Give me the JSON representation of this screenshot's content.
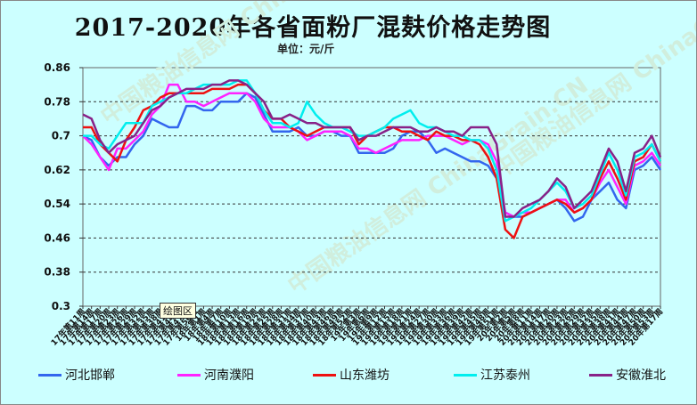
{
  "chart_data": {
    "type": "line",
    "title": "2017-2020年各省面粉厂混麸价格走势图",
    "subtitle": "单位：元/斤",
    "ylim": [
      0.3,
      0.86
    ],
    "yticks": [
      "0.86",
      "0.78",
      "0.7",
      "0.62",
      "0.54",
      "0.46",
      "0.38",
      "0.3"
    ],
    "ytick_values": [
      0.86,
      0.78,
      0.7,
      0.62,
      0.54,
      0.46,
      0.38,
      0.3
    ],
    "grid": true,
    "legend_position": "bottom",
    "plot_area_label": "绘图区",
    "watermark": "中国粮油信息网 ChinaGrain.CN",
    "x_count": 68,
    "xtick_labels": [
      "17年第11周",
      "17年第14周",
      "17年第17周",
      "17年第20周",
      "17年第23周",
      "17年第26周",
      "17年第29周",
      "17年第32周",
      "17年第35周",
      "17年第38周",
      "17年第41周",
      "17年第44周",
      "17年第47周",
      "17年第50周",
      "18年第1周",
      "18年第4周",
      "18年第7周",
      "18年第10周",
      "18年第13周",
      "18年第16周",
      "18年第19周",
      "18年第22周",
      "18年第25周",
      "18年第28周",
      "18年第31周",
      "18年第34周",
      "18年第37周",
      "18年第40周",
      "18年第43周",
      "18年第46周",
      "18年第49周",
      "18年第52周",
      "19年第3周",
      "19年第6周",
      "19年第9周",
      "19年第12周",
      "19年第15周",
      "19年第18周",
      "19年第21周",
      "19年第24周",
      "19年第27周",
      "19年第30周",
      "19年第33周",
      "19年第36周",
      "19年第39周",
      "19年第42周",
      "19年第45周",
      "19年第48周",
      "19年第51周",
      "20年第2周",
      "20年第5周",
      "20年第8周",
      "20年第11周",
      "20年第14周",
      "20年第17周",
      "20年第20周",
      "20年第23周",
      "20年第26周",
      "20年第29周",
      "20年第32周",
      "20年第35周",
      "20年第38周",
      "20年第41周",
      "20年第44周",
      "20年第47周",
      "20年第50周",
      "20年第53周",
      "20年第17周"
    ],
    "series": [
      {
        "name": "河北邯郸",
        "color": "#3366ee",
        "values": [
          0.7,
          0.69,
          0.65,
          0.63,
          0.65,
          0.65,
          0.68,
          0.7,
          0.74,
          0.73,
          0.72,
          0.72,
          0.77,
          0.77,
          0.76,
          0.76,
          0.78,
          0.78,
          0.78,
          0.8,
          0.79,
          0.75,
          0.71,
          0.71,
          0.71,
          0.72,
          0.7,
          0.7,
          0.71,
          0.71,
          0.7,
          0.7,
          0.66,
          0.66,
          0.66,
          0.66,
          0.67,
          0.7,
          0.71,
          0.71,
          0.69,
          0.66,
          0.67,
          0.66,
          0.65,
          0.64,
          0.64,
          0.63,
          0.6,
          0.52,
          0.51,
          0.51,
          0.52,
          0.53,
          0.54,
          0.55,
          0.53,
          0.5,
          0.51,
          0.55,
          0.57,
          0.59,
          0.55,
          0.53,
          0.62,
          0.63,
          0.65,
          0.62
        ]
      },
      {
        "name": "河南濮阳",
        "color": "#ff22ff",
        "values": [
          0.7,
          0.68,
          0.65,
          0.62,
          0.67,
          0.67,
          0.69,
          0.71,
          0.75,
          0.77,
          0.82,
          0.82,
          0.78,
          0.78,
          0.77,
          0.78,
          0.79,
          0.8,
          0.8,
          0.8,
          0.78,
          0.74,
          0.72,
          0.72,
          0.72,
          0.71,
          0.69,
          0.7,
          0.71,
          0.71,
          0.71,
          0.7,
          0.67,
          0.67,
          0.66,
          0.67,
          0.68,
          0.69,
          0.69,
          0.69,
          0.7,
          0.7,
          0.7,
          0.69,
          0.68,
          0.69,
          0.69,
          0.68,
          0.64,
          0.52,
          0.51,
          0.52,
          0.52,
          0.53,
          0.54,
          0.55,
          0.55,
          0.52,
          0.53,
          0.55,
          0.59,
          0.62,
          0.58,
          0.54,
          0.63,
          0.64,
          0.66,
          0.63
        ]
      },
      {
        "name": "山东潍坊",
        "color": "#ee1111",
        "values": [
          0.72,
          0.72,
          0.68,
          0.66,
          0.64,
          0.69,
          0.72,
          0.76,
          0.77,
          0.79,
          0.8,
          0.8,
          0.8,
          0.8,
          0.8,
          0.81,
          0.81,
          0.81,
          0.82,
          0.82,
          0.8,
          0.76,
          0.74,
          0.74,
          0.72,
          0.71,
          0.7,
          0.71,
          0.72,
          0.72,
          0.72,
          0.72,
          0.68,
          0.7,
          0.71,
          0.72,
          0.72,
          0.71,
          0.71,
          0.7,
          0.69,
          0.71,
          0.7,
          0.7,
          0.69,
          0.69,
          0.68,
          0.65,
          0.6,
          0.48,
          0.46,
          0.51,
          0.52,
          0.53,
          0.54,
          0.55,
          0.54,
          0.52,
          0.53,
          0.55,
          0.6,
          0.64,
          0.6,
          0.55,
          0.64,
          0.65,
          0.68,
          0.64
        ]
      },
      {
        "name": "江苏泰州",
        "color": "#00eeee",
        "values": [
          0.7,
          0.7,
          0.68,
          0.67,
          0.7,
          0.73,
          0.73,
          0.73,
          0.77,
          0.78,
          0.79,
          0.8,
          0.8,
          0.81,
          0.82,
          0.82,
          0.82,
          0.82,
          0.83,
          0.83,
          0.8,
          0.76,
          0.73,
          0.73,
          0.72,
          0.73,
          0.78,
          0.75,
          0.73,
          0.72,
          0.72,
          0.71,
          0.7,
          0.7,
          0.71,
          0.72,
          0.74,
          0.75,
          0.76,
          0.73,
          0.72,
          0.72,
          0.71,
          0.7,
          0.7,
          0.69,
          0.69,
          0.67,
          0.62,
          0.5,
          0.51,
          0.52,
          0.53,
          0.55,
          0.57,
          0.59,
          0.57,
          0.53,
          0.54,
          0.56,
          0.61,
          0.66,
          0.62,
          0.56,
          0.65,
          0.66,
          0.68,
          0.64
        ]
      },
      {
        "name": "安徽淮北",
        "color": "#882288",
        "values": [
          0.75,
          0.74,
          0.69,
          0.66,
          0.68,
          0.69,
          0.7,
          0.73,
          0.76,
          0.77,
          0.79,
          0.8,
          0.81,
          0.81,
          0.81,
          0.82,
          0.82,
          0.83,
          0.83,
          0.82,
          0.8,
          0.78,
          0.74,
          0.74,
          0.75,
          0.74,
          0.73,
          0.73,
          0.72,
          0.72,
          0.72,
          0.72,
          0.69,
          0.7,
          0.7,
          0.71,
          0.72,
          0.72,
          0.72,
          0.71,
          0.71,
          0.72,
          0.71,
          0.71,
          0.7,
          0.72,
          0.72,
          0.72,
          0.68,
          0.51,
          0.51,
          0.53,
          0.54,
          0.55,
          0.57,
          0.6,
          0.58,
          0.53,
          0.55,
          0.57,
          0.62,
          0.67,
          0.64,
          0.57,
          0.66,
          0.67,
          0.7,
          0.65
        ]
      }
    ]
  }
}
